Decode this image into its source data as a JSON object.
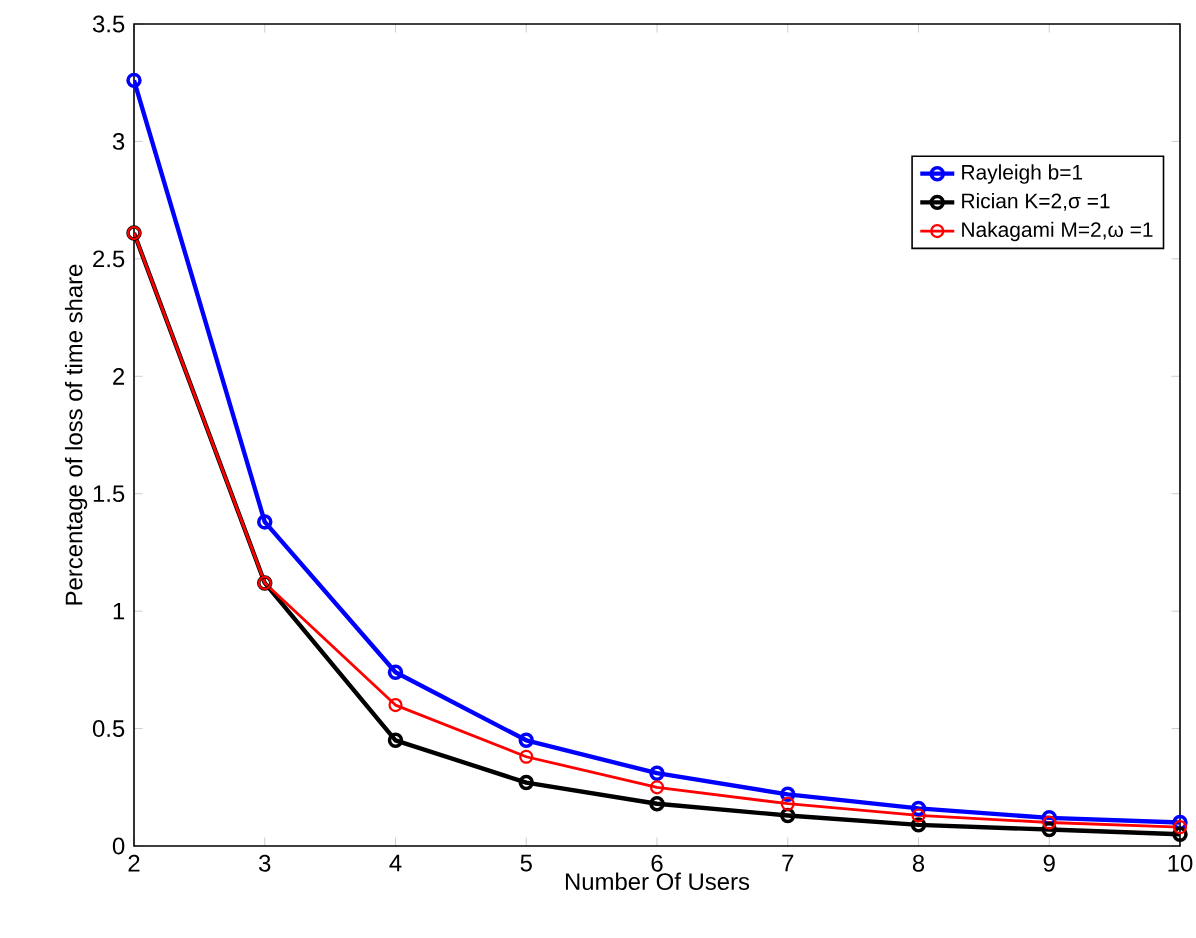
{
  "chart_data": {
    "type": "line",
    "xlabel": "Number Of Users",
    "ylabel": "Percentage of loss of time share",
    "x": [
      2,
      3,
      4,
      5,
      6,
      7,
      8,
      9,
      10
    ],
    "series": [
      {
        "name": "Rayleigh b=1",
        "color": "#0000ff",
        "values": [
          3.26,
          1.38,
          0.74,
          0.45,
          0.31,
          0.22,
          0.16,
          0.12,
          0.1
        ]
      },
      {
        "name": "Rician K=2,σ =1",
        "color": "#000000",
        "values": [
          2.61,
          1.12,
          0.45,
          0.27,
          0.18,
          0.13,
          0.09,
          0.07,
          0.05
        ]
      },
      {
        "name": "Nakagami M=2,ω =1",
        "color": "#ff0000",
        "values": [
          2.61,
          1.12,
          0.6,
          0.38,
          0.25,
          0.18,
          0.13,
          0.1,
          0.08
        ]
      }
    ],
    "xlim": [
      2,
      10
    ],
    "ylim": [
      0,
      3.5
    ],
    "xticks": [
      2,
      3,
      4,
      5,
      6,
      7,
      8,
      9,
      10
    ],
    "yticks": [
      0,
      0.5,
      1,
      1.5,
      2,
      2.5,
      3,
      3.5
    ],
    "legend": "top right",
    "marker": "circle",
    "line_style": "solid",
    "grid": false
  }
}
